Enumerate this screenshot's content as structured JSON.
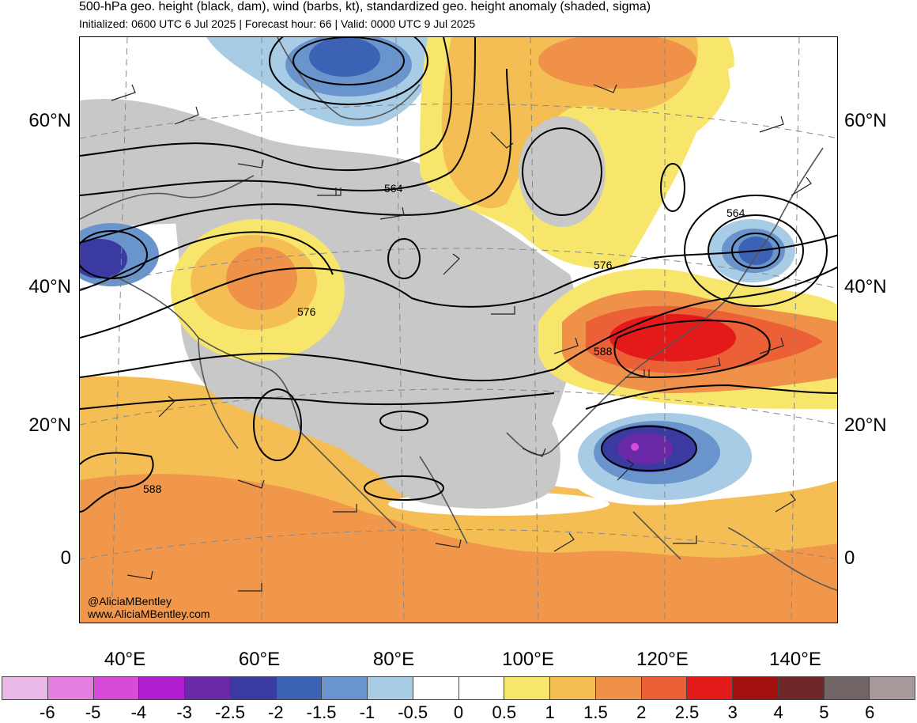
{
  "header": {
    "title": "500-hPa geo. height (black, dam), wind (barbs, kt), standardized geo. height anomaly (shaded, sigma)",
    "subtitle": "Initialized: 0600 UTC 6 Jul 2025 | Forecast hour: 66 | Valid: 0000 UTC 9 Jul 2025"
  },
  "map": {
    "lat_labels": [
      "60°N",
      "40°N",
      "20°N",
      "0"
    ],
    "lon_labels": [
      "40°E",
      "60°E",
      "80°E",
      "100°E",
      "120°E",
      "140°E"
    ],
    "contour_labels": [
      "564",
      "576",
      "588"
    ],
    "credit_handle": "@AliciaMBentley",
    "credit_site": "www.AliciaMBentley.com"
  },
  "colorbar": {
    "labels": [
      "-6",
      "-5",
      "-4",
      "-3",
      "-2.5",
      "-2",
      "-1.5",
      "-1",
      "-0.5",
      "0",
      "0.5",
      "1",
      "1.5",
      "2",
      "2.5",
      "3",
      "4",
      "5",
      "6"
    ],
    "colors": [
      "#eab8e6",
      "#e680e0",
      "#d84ad8",
      "#b01ccf",
      "#6a2aa8",
      "#3a3aa0",
      "#3c62b6",
      "#6a94cc",
      "#a8cbe6",
      "#ffffff",
      "#ffffff",
      "#f8e66c",
      "#f4be54",
      "#f0914a",
      "#ec6038",
      "#e41a1a",
      "#a30f0f",
      "#6e2828",
      "#706464",
      "#a89a9a"
    ]
  },
  "legend_colors": {
    "neutral_gray": "#c8c8c8",
    "coast": "#555555",
    "contour": "#000000"
  }
}
